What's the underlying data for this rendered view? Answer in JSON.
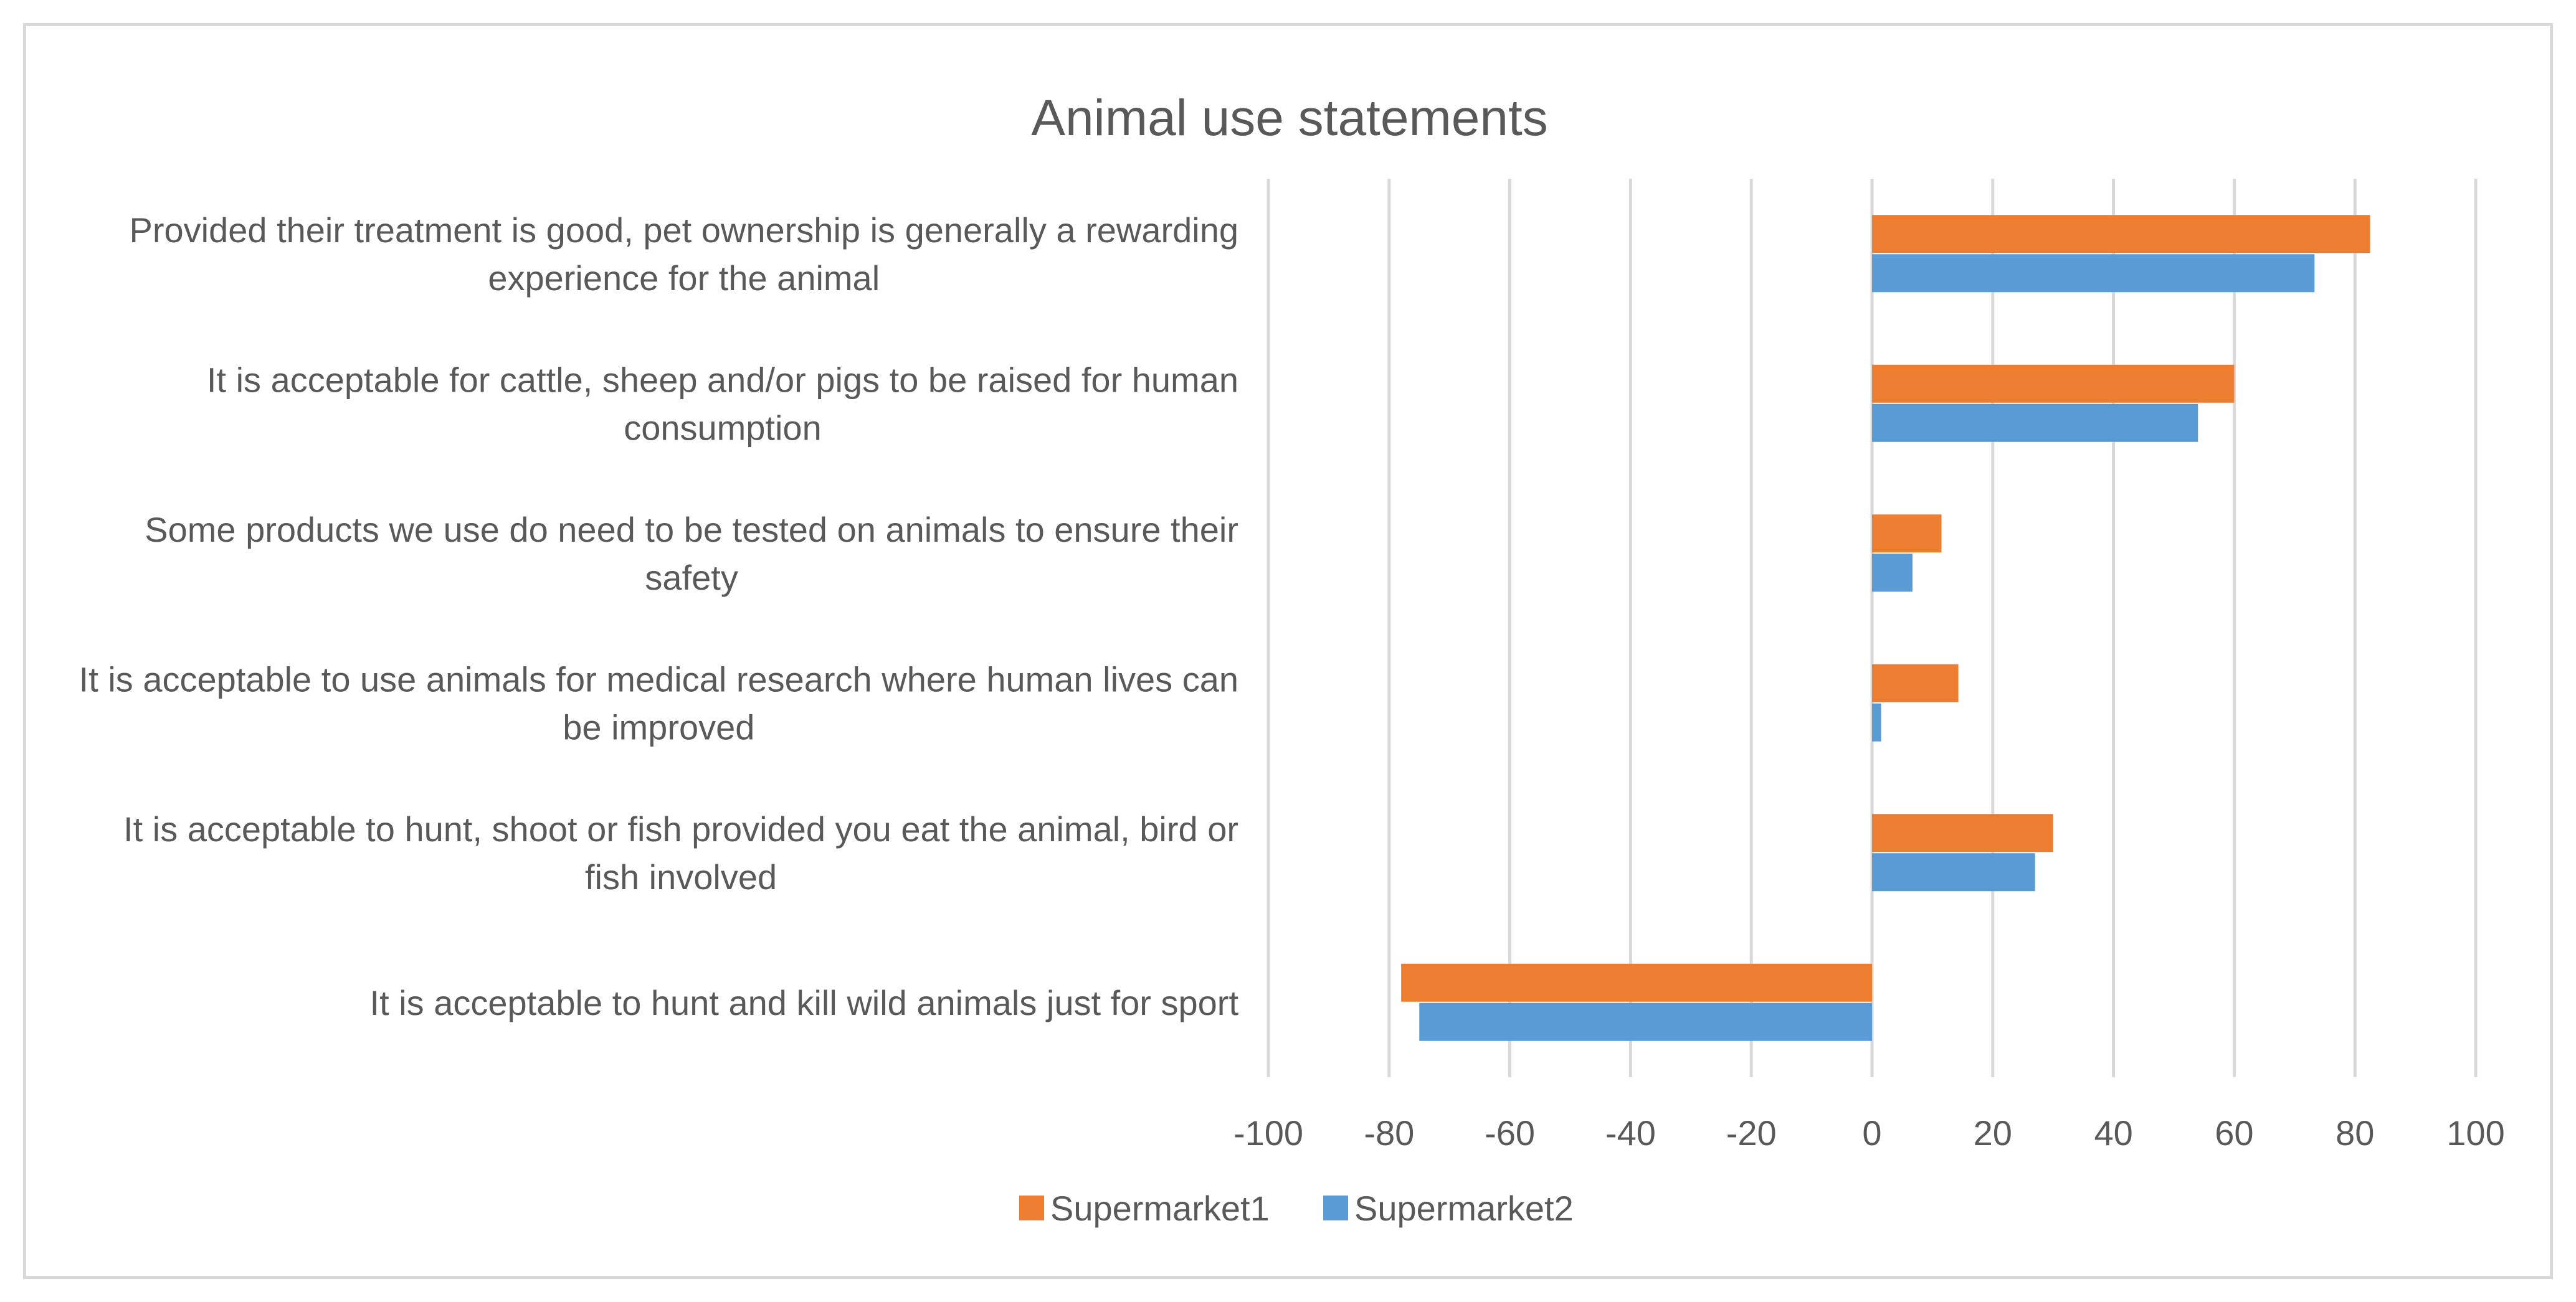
{
  "chart_data": {
    "type": "bar",
    "orientation": "horizontal",
    "title": "Animal use statements",
    "xlabel": "",
    "ylabel": "",
    "xlim": [
      -100,
      100
    ],
    "xticks": [
      -100,
      -80,
      -60,
      -40,
      -20,
      0,
      20,
      40,
      60,
      80,
      100
    ],
    "tick_labels": [
      "-100",
      "-80",
      "-60",
      "-40",
      "-20",
      "0",
      "20",
      "40",
      "60",
      "80",
      "100"
    ],
    "grid": true,
    "legend_position": "bottom",
    "categories": [
      [
        "Provided their treatment is good, pet ownership is generally a rewarding",
        "experience for the animal"
      ],
      [
        "It is acceptable for cattle, sheep and/or pigs to be raised for human",
        "consumption"
      ],
      [
        "Some products we use do need to be tested on animals to ensure their",
        "safety"
      ],
      [
        "It is acceptable to use animals for medical research where human lives can",
        "be improved"
      ],
      [
        "It is acceptable to hunt, shoot or fish provided you eat the animal, bird or",
        "fish involved"
      ],
      [
        "It is acceptable to hunt and kill wild animals just for sport"
      ]
    ],
    "series": [
      {
        "name": "Supermarket1",
        "color": "#ED7D31",
        "values": [
          82.5,
          60,
          11.5,
          14.3,
          30,
          -78
        ]
      },
      {
        "name": "Supermarket2",
        "color": "#5B9BD5",
        "values": [
          73.3,
          54,
          6.7,
          1.5,
          27,
          -75
        ]
      }
    ]
  }
}
